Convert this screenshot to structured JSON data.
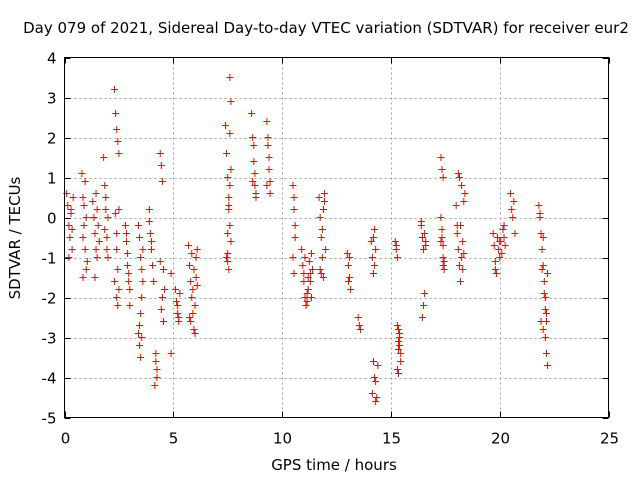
{
  "chart_data": {
    "type": "scatter",
    "title": "Day 079 of 2021, Sidereal Day-to-day VTEC variation (SDTVAR) for receiver eur2",
    "xlabel": "GPS time / hours",
    "ylabel": "SDTVAR / TECUs",
    "xlim": [
      0,
      25
    ],
    "ylim": [
      -5,
      4
    ],
    "xticks": [
      0,
      5,
      10,
      15,
      20,
      25
    ],
    "xtick_labels": [
      "0",
      "5",
      "10",
      "15",
      "20",
      "25"
    ],
    "yticks": [
      -5,
      -4,
      -3,
      -2,
      -1,
      0,
      1,
      2,
      3,
      4
    ],
    "ytick_labels": [
      "-5",
      "-4",
      "-3",
      "-2",
      "-1",
      "0",
      "1",
      "2",
      "3",
      "4"
    ],
    "grid": true,
    "marker": "+",
    "color": "#ff0000",
    "series": [
      {
        "name": "eur2",
        "x": [
          0.1,
          0.15,
          0.2,
          0.25,
          0.3,
          0.35,
          0.4,
          0.2,
          0.3,
          0.35,
          0.8,
          0.85,
          0.9,
          0.95,
          1.0,
          0.85,
          0.9,
          0.95,
          1.0,
          0.85,
          1.05,
          1.3,
          1.35,
          1.4,
          1.45,
          1.5,
          1.55,
          1.4,
          1.45,
          1.6,
          1.5,
          1.8,
          1.85,
          1.9,
          1.95,
          2.0,
          1.85,
          1.9,
          1.95,
          2.0,
          2.3,
          2.35,
          2.4,
          2.45,
          2.5,
          2.35,
          2.4,
          2.45,
          2.5,
          2.4,
          2.45,
          2.3,
          2.4,
          2.5,
          2.8,
          2.85,
          2.9,
          2.95,
          3.0,
          2.9,
          2.95,
          3.0,
          2.85,
          3.4,
          3.45,
          3.5,
          3.55,
          3.4,
          3.45,
          3.5,
          3.55,
          3.6,
          3.5,
          3.45,
          3.55,
          3.6,
          3.9,
          3.95,
          4.0,
          4.05,
          4.1,
          4.2,
          4.25,
          4.15,
          3.9,
          4.0,
          4.2,
          4.25,
          4.4,
          4.45,
          4.5,
          4.55,
          4.6,
          4.5,
          4.45,
          4.55,
          4.4,
          4.9,
          4.9,
          5.1,
          5.15,
          5.2,
          5.25,
          5.3,
          5.2,
          5.25,
          5.7,
          5.75,
          5.8,
          5.85,
          5.9,
          5.95,
          6.0,
          6.05,
          6.1,
          5.8,
          5.9,
          6.0,
          6.05,
          5.85,
          5.95,
          6.1,
          5.75,
          7.4,
          7.45,
          7.5,
          7.55,
          7.6,
          7.65,
          7.5,
          7.55,
          7.6,
          7.65,
          7.5,
          7.55,
          7.6,
          7.45,
          7.5,
          7.55,
          7.6,
          7.65,
          8.6,
          8.65,
          8.7,
          8.75,
          8.8,
          8.7,
          8.75,
          8.65,
          8.8,
          9.3,
          9.35,
          9.4,
          9.45,
          9.35,
          9.4,
          9.45,
          9.3,
          10.5,
          10.55,
          10.6,
          10.5,
          10.55,
          10.6,
          10.55,
          10.9,
          10.95,
          11.0,
          11.05,
          11.1,
          11.15,
          11.2,
          11.25,
          11.3,
          11.35,
          11.4,
          11.0,
          11.1,
          11.2,
          11.3,
          11.05,
          11.15,
          11.35,
          11.7,
          11.75,
          11.8,
          11.85,
          11.9,
          11.95,
          12.0,
          11.8,
          11.9,
          11.85,
          11.75,
          11.95,
          13.0,
          13.05,
          13.1,
          13.15,
          13.05,
          13.1,
          13.5,
          13.55,
          13.6,
          14.1,
          14.15,
          14.2,
          14.25,
          14.3,
          14.2,
          14.25,
          14.15,
          14.3,
          14.35,
          14.4,
          14.3,
          14.2,
          14.25,
          15.2,
          15.25,
          15.3,
          15.35,
          15.4,
          15.45,
          15.3,
          15.35,
          15.4,
          15.25,
          15.45,
          15.35,
          15.3,
          15.4,
          15.35,
          16.4,
          16.45,
          16.5,
          16.55,
          16.6,
          16.45,
          16.5,
          16.55,
          16.4,
          16.6,
          17.3,
          17.35,
          17.4,
          17.45,
          17.35,
          17.4,
          17.45,
          17.3,
          17.4,
          17.3,
          17.35,
          17.4,
          18.0,
          18.05,
          18.1,
          18.15,
          18.2,
          18.25,
          18.3,
          18.35,
          18.4,
          18.1,
          18.2,
          18.3,
          18.05,
          18.15,
          18.25,
          18.35,
          19.7,
          19.75,
          19.8,
          19.85,
          19.9,
          19.95,
          20.0,
          20.05,
          20.1,
          20.15,
          20.2,
          20.25,
          19.8,
          20.0,
          20.2,
          20.5,
          20.6,
          20.7,
          20.55,
          20.65,
          21.8,
          21.85,
          21.9,
          21.95,
          22.0,
          22.05,
          22.1,
          22.15,
          21.9,
          22.0,
          22.1,
          22.05,
          21.95,
          22.15,
          22.2,
          22.1,
          22.15,
          22.2,
          21.85,
          22.0
        ],
        "y": [
          0.6,
          0.3,
          -0.2,
          -0.5,
          0.1,
          -0.8,
          0.5,
          -1.0,
          0.2,
          -0.3,
          1.1,
          0.5,
          -0.2,
          -0.8,
          -1.3,
          -1.5,
          0.3,
          0.9,
          0.0,
          -0.5,
          -1.1,
          0.4,
          0.0,
          -0.4,
          -0.8,
          -1.0,
          -0.2,
          -1.5,
          0.6,
          -0.6,
          0.2,
          1.5,
          0.8,
          0.2,
          -0.5,
          -1.0,
          -0.3,
          0.5,
          -0.8,
          0.0,
          3.2,
          2.6,
          2.2,
          1.9,
          1.6,
          0.1,
          -0.4,
          -1.3,
          -1.8,
          -2.0,
          -2.2,
          -1.6,
          -0.8,
          0.2,
          -0.2,
          -0.6,
          -1.2,
          -1.6,
          -2.2,
          -0.9,
          -1.4,
          -1.8,
          -0.4,
          -2.9,
          -3.2,
          -3.5,
          -3.0,
          -0.2,
          -0.5,
          -1.0,
          -1.3,
          -1.6,
          -2.4,
          -2.7,
          -2.0,
          -0.8,
          0.2,
          -0.4,
          -0.8,
          -1.2,
          -1.6,
          -3.4,
          -3.8,
          -4.2,
          -0.1,
          -0.6,
          -3.6,
          -4.0,
          1.6,
          1.3,
          0.9,
          -1.3,
          -1.8,
          -2.0,
          -2.3,
          -2.6,
          -1.1,
          -1.4,
          -3.4,
          -1.8,
          -2.1,
          -2.4,
          -2.6,
          -1.9,
          -2.2,
          -2.5,
          -0.7,
          -1.2,
          -1.6,
          -2.0,
          -2.4,
          -2.8,
          -2.9,
          -1.0,
          -0.8,
          -2.6,
          -1.8,
          -2.2,
          -1.5,
          -0.9,
          -1.3,
          -1.7,
          -2.5,
          2.3,
          1.6,
          1.0,
          0.5,
          -0.2,
          -0.6,
          -0.9,
          -1.3,
          2.1,
          1.2,
          -1.1,
          0.2,
          0.8,
          -1.0,
          -0.4,
          0.3,
          3.5,
          2.9,
          2.6,
          2.0,
          1.4,
          0.8,
          0.5,
          1.8,
          1.1,
          0.9,
          0.6,
          2.4,
          1.8,
          1.2,
          0.6,
          2.0,
          1.5,
          0.9,
          0.8,
          0.8,
          0.2,
          -0.5,
          -1.0,
          -1.4,
          -0.2,
          0.5,
          -0.8,
          -1.2,
          -1.6,
          -2.0,
          -2.2,
          -1.9,
          -1.5,
          -1.1,
          -1.6,
          -2.0,
          -1.3,
          -1.4,
          -2.2,
          -1.8,
          -1.4,
          -1.0,
          -2.1,
          -0.9,
          0.5,
          0.0,
          -0.5,
          -1.0,
          -1.5,
          0.4,
          -0.8,
          -1.4,
          0.2,
          -0.3,
          -1.3,
          0.6,
          -0.9,
          -1.2,
          -1.5,
          -1.8,
          -1.6,
          -1.0,
          -2.5,
          -2.7,
          -2.8,
          -0.6,
          -1.0,
          -1.4,
          -0.3,
          -0.8,
          -3.6,
          -4.0,
          -4.4,
          -4.6,
          -4.5,
          -3.7,
          -4.1,
          -0.5,
          -1.2,
          -0.6,
          -0.8,
          -1.0,
          -2.8,
          -3.2,
          -3.6,
          -3.8,
          -3.1,
          -2.9,
          -0.7,
          -3.4,
          -3.9,
          -2.7,
          -3.0,
          -3.3,
          -0.2,
          -0.5,
          -0.8,
          -0.4,
          -0.7,
          -2.5,
          -2.2,
          -1.9,
          -0.1,
          -0.6,
          0.0,
          -0.5,
          -1.0,
          -1.3,
          -0.3,
          -0.7,
          -1.1,
          -0.6,
          -1.2,
          1.5,
          1.2,
          1.0,
          0.3,
          -0.2,
          -0.8,
          -1.2,
          -1.6,
          -1.0,
          -0.6,
          -0.9,
          0.6,
          1.1,
          -0.2,
          -1.3,
          -0.4,
          1.0,
          0.8,
          0.4,
          -0.4,
          -0.7,
          -1.1,
          -1.4,
          -0.5,
          -0.8,
          -1.0,
          -0.6,
          -0.9,
          -0.3,
          -0.5,
          -0.7,
          -1.3,
          -0.6,
          -0.2,
          0.6,
          0.0,
          -0.4,
          0.2,
          0.4,
          0.3,
          0.0,
          -0.4,
          -0.8,
          -1.2,
          -1.6,
          -2.0,
          -2.4,
          -2.6,
          -2.8,
          -2.3,
          -1.9,
          -1.3,
          -2.6,
          -1.4,
          -3.0,
          -3.4,
          -3.7,
          0.1,
          -0.5
        ]
      }
    ]
  }
}
